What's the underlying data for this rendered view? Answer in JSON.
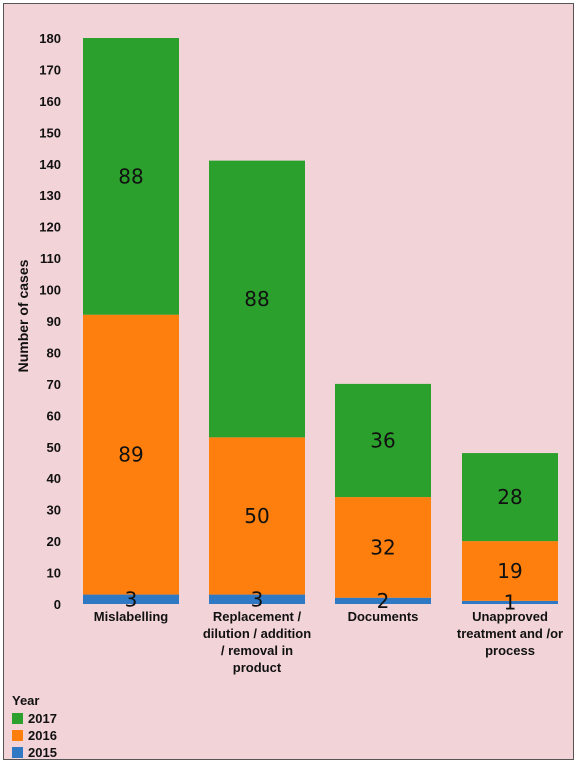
{
  "chart_data": {
    "type": "bar",
    "stacked": true,
    "categories": [
      "Mislabelling",
      "Replacement / dilution / addition / removal in product",
      "Documents",
      "Unapproved treatment and /or process"
    ],
    "category_lines": [
      [
        "Mislabelling"
      ],
      [
        "Replacement /",
        "dilution / addition",
        "/ removal in",
        "product"
      ],
      [
        "Documents"
      ],
      [
        "Unapproved",
        "treatment and /or",
        "process"
      ]
    ],
    "series": [
      {
        "name": "2015",
        "values": [
          3,
          3,
          2,
          1
        ],
        "color": "#2e78c4"
      },
      {
        "name": "2016",
        "values": [
          89,
          50,
          32,
          19
        ],
        "color": "#ff7f0e"
      },
      {
        "name": "2017",
        "values": [
          88,
          88,
          36,
          28
        ],
        "color": "#2ca02c"
      }
    ],
    "title": "",
    "xlabel": "",
    "ylabel": "Number of cases",
    "ylim": [
      0,
      180
    ],
    "yticks": [
      0,
      10,
      20,
      30,
      40,
      50,
      60,
      70,
      80,
      90,
      100,
      110,
      120,
      130,
      140,
      150,
      160,
      170,
      180
    ],
    "grid": false,
    "legend": {
      "title": "Year",
      "placement": "bottom-left",
      "order": [
        "2017",
        "2016",
        "2015"
      ]
    },
    "background": "#f2d3d7"
  }
}
